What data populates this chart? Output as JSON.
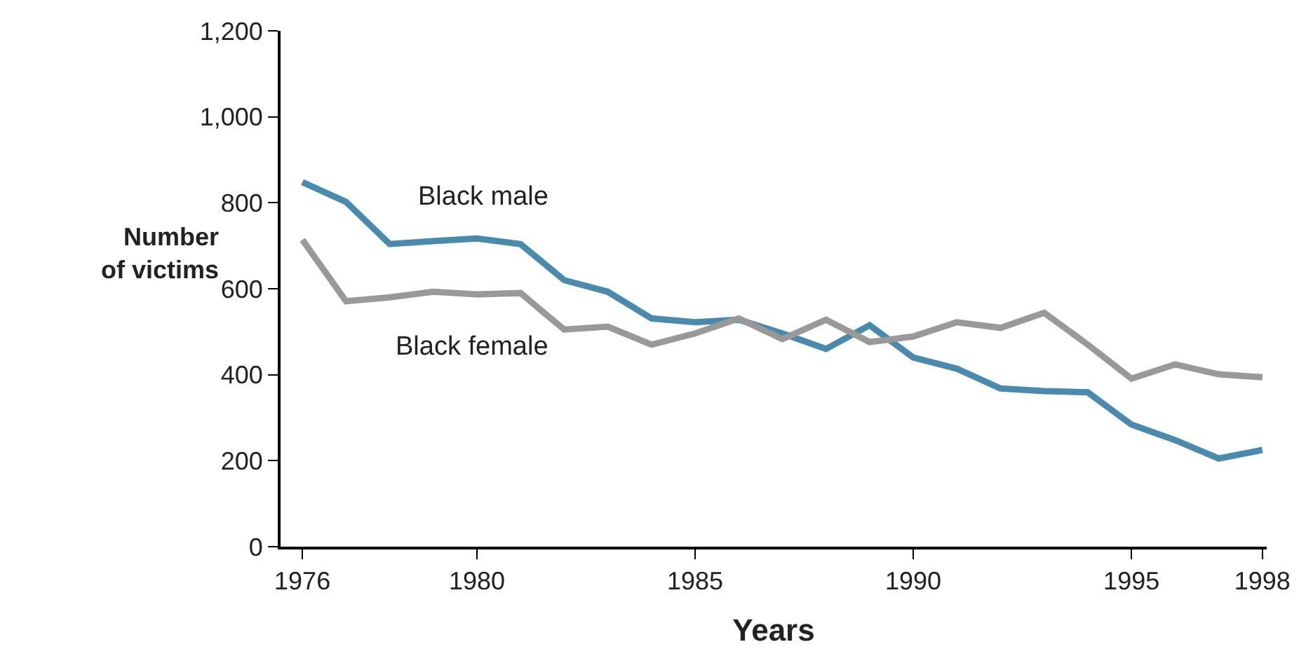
{
  "chart_data": {
    "type": "line",
    "xlabel": "Years",
    "ylabel": "Number of victims",
    "x": [
      1976,
      1977,
      1978,
      1979,
      1980,
      1981,
      1982,
      1983,
      1984,
      1985,
      1986,
      1987,
      1988,
      1989,
      1990,
      1991,
      1992,
      1993,
      1994,
      1995,
      1996,
      1997,
      1998
    ],
    "series": [
      {
        "name": "Black male",
        "color": "#4a8aad",
        "values": [
          848,
          802,
          704,
          711,
          717,
          704,
          620,
          593,
          531,
          522,
          528,
          496,
          460,
          515,
          440,
          414,
          368,
          362,
          359,
          284,
          248,
          205,
          225
        ]
      },
      {
        "name": "Black female",
        "color": "#999999",
        "values": [
          714,
          571,
          580,
          593,
          587,
          590,
          505,
          512,
          470,
          496,
          531,
          483,
          528,
          476,
          489,
          522,
          509,
          544,
          470,
          391,
          424,
          401,
          394
        ]
      }
    ],
    "xlim": [
      1975.5,
      1998.1
    ],
    "xticks": [
      1976,
      1980,
      1985,
      1990,
      1995,
      1998
    ],
    "ylim": [
      0,
      1200
    ],
    "yticks": [
      {
        "value": 0,
        "label": "0"
      },
      {
        "value": 200,
        "label": "200"
      },
      {
        "value": 400,
        "label": "400"
      },
      {
        "value": 600,
        "label": "600"
      },
      {
        "value": 800,
        "label": "800"
      },
      {
        "value": 1000,
        "label": "1,000"
      },
      {
        "value": 1200,
        "label": "1,200"
      }
    ],
    "grid": false,
    "legend": false,
    "marker": "none",
    "line_style": "solid"
  }
}
